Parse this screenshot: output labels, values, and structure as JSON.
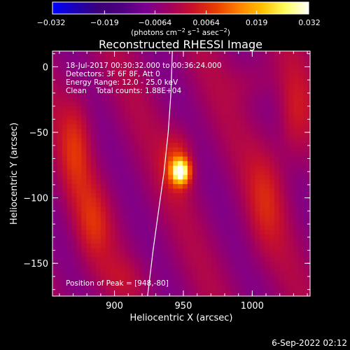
{
  "chart_data": {
    "type": "heatmap",
    "title": "Reconstructed RHESSI Image",
    "xlabel": "Heliocentric X (arcsec)",
    "ylabel": "Heliocentric Y (arcsec)",
    "xlim": [
      855,
      1042
    ],
    "ylim": [
      -175,
      12
    ],
    "x_ticks": [
      900,
      950,
      1000
    ],
    "y_ticks": [
      0,
      -50,
      -100,
      -150
    ],
    "x_tick_labels": [
      "900",
      "950",
      "1000"
    ],
    "y_tick_labels": [
      "0",
      "−50",
      "−100",
      "−150"
    ],
    "colorbar": {
      "min": -0.032,
      "max": 0.032,
      "ticks": [
        -0.032,
        -0.019,
        -0.0064,
        0.0064,
        0.019,
        0.032
      ],
      "tick_labels": [
        "−0.032",
        "−0.019",
        "−0.0064",
        "0.0064",
        "0.019",
        "0.032"
      ],
      "unit_label": "(photons cm",
      "unit_exp1": "−2",
      "unit_mid": " s",
      "unit_exp2": "−1",
      "unit_tail": " asec",
      "unit_exp3": "−2",
      "unit_close": ")",
      "colors": [
        "#0000ff",
        "#1c00b4",
        "#3c0078",
        "#500080",
        "#7a0090",
        "#a00060",
        "#c8102a",
        "#e83c00",
        "#ff8000",
        "#ffc000",
        "#ffff60",
        "#ffffff"
      ]
    },
    "info_lines": [
      "18-Jul-2017 00:30:32.000 to 00:36:24.000",
      "Detectors: 3F 6F 8F, Att 0",
      "Energy Range: 12.0 - 25.0 keV",
      "Clean    Total counts: 1.88E+04"
    ],
    "peak_label": "Position of Peak = [948,-80]",
    "peak": [
      948,
      -80
    ],
    "limb_points": [
      [
        942,
        12
      ],
      [
        941,
        -20
      ],
      [
        939,
        -50
      ],
      [
        936,
        -80
      ],
      [
        932,
        -110
      ],
      [
        928,
        -140
      ],
      [
        924,
        -175
      ]
    ],
    "sources": [
      {
        "x": 948,
        "y": -80,
        "sx": 4.5,
        "sy": 6.5,
        "amp": 0.032
      },
      {
        "x": 946,
        "y": -72,
        "sx": 8,
        "sy": 16,
        "amp": 0.011
      },
      {
        "x": 872,
        "y": -60,
        "sx": 8,
        "sy": 28,
        "amp": 0.009
      },
      {
        "x": 884,
        "y": -120,
        "sx": 9,
        "sy": 22,
        "amp": 0.008
      },
      {
        "x": 1010,
        "y": -100,
        "sx": 10,
        "sy": 30,
        "amp": 0.007
      },
      {
        "x": 1030,
        "y": -40,
        "sx": 8,
        "sy": 25,
        "amp": 0.007
      },
      {
        "x": 1000,
        "y": -10,
        "sx": 12,
        "sy": 12,
        "amp": 0.004
      },
      {
        "x": 905,
        "y": -160,
        "sx": 15,
        "sy": 10,
        "amp": 0.003
      }
    ],
    "background_level": -0.004
  },
  "footer": {
    "timestamp": "6-Sep-2022 02:12"
  }
}
